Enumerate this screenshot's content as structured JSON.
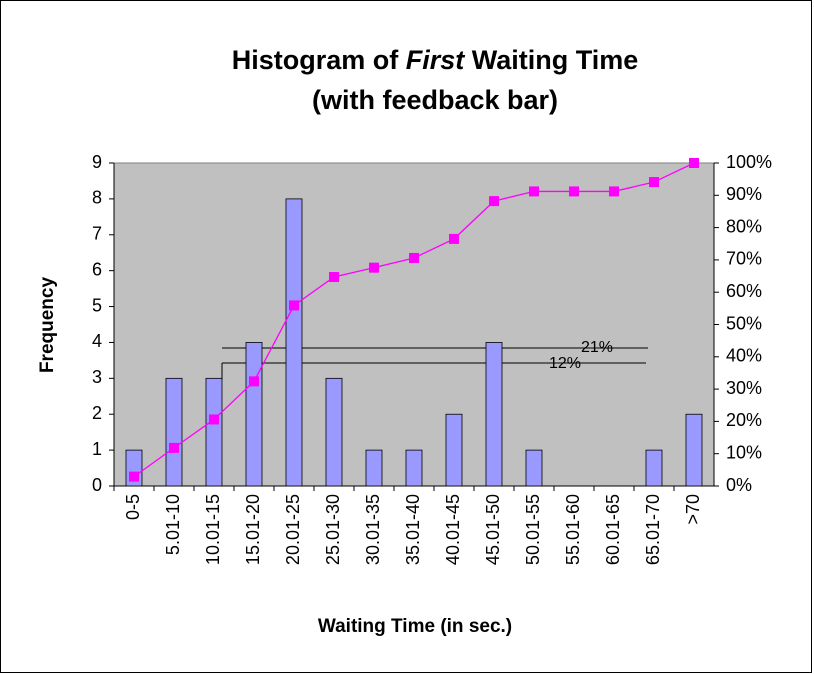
{
  "chart_data": {
    "type": "bar",
    "title": {
      "line1": [
        "Histogram of",
        "First",
        "Waiting Time"
      ],
      "line2": "(with feedback bar)"
    },
    "xlabel": "Waiting Time (in sec.)",
    "ylabel": "Frequency",
    "categories": [
      "0-5",
      "5.01-10",
      "10.01-15",
      "15.01-20",
      "20.01-25",
      "25.01-30",
      "30.01-35",
      "35.01-40",
      "40.01-45",
      "45.01-50",
      "50.01-55",
      "55.01-60",
      "60.01-65",
      "65.01-70",
      ">70"
    ],
    "series": [
      {
        "type": "bar",
        "color": "#9999ff",
        "values": [
          1,
          3,
          3,
          4,
          8,
          3,
          1,
          1,
          2,
          4,
          1,
          0,
          0,
          1,
          2
        ]
      },
      {
        "type": "line",
        "axis": "y2",
        "color": "#ff00ff",
        "values": [
          2.9,
          11.8,
          20.6,
          32.4,
          55.9,
          64.7,
          67.6,
          70.6,
          76.5,
          88.2,
          91.2,
          91.2,
          91.2,
          94.1,
          100
        ]
      }
    ],
    "ylim": [
      0,
      9
    ],
    "yticks": [
      0,
      1,
      2,
      3,
      4,
      5,
      6,
      7,
      8,
      9
    ],
    "y2lim": [
      0,
      100
    ],
    "y2ticks": [
      {
        "value": 0,
        "label": "0%"
      },
      {
        "value": 10,
        "label": "10%"
      },
      {
        "value": 20,
        "label": "20%"
      },
      {
        "value": 30,
        "label": "30%"
      },
      {
        "value": 40,
        "label": "40%"
      },
      {
        "value": 50,
        "label": "50%"
      },
      {
        "value": 60,
        "label": "60%"
      },
      {
        "value": 70,
        "label": "70%"
      },
      {
        "value": 80,
        "label": "80%"
      },
      {
        "value": 90,
        "label": "90%"
      },
      {
        "value": 100,
        "label": "100%"
      }
    ],
    "annotations": [
      "21%",
      "12%"
    ],
    "plot_background": "#c0c0c0",
    "grid": false
  }
}
